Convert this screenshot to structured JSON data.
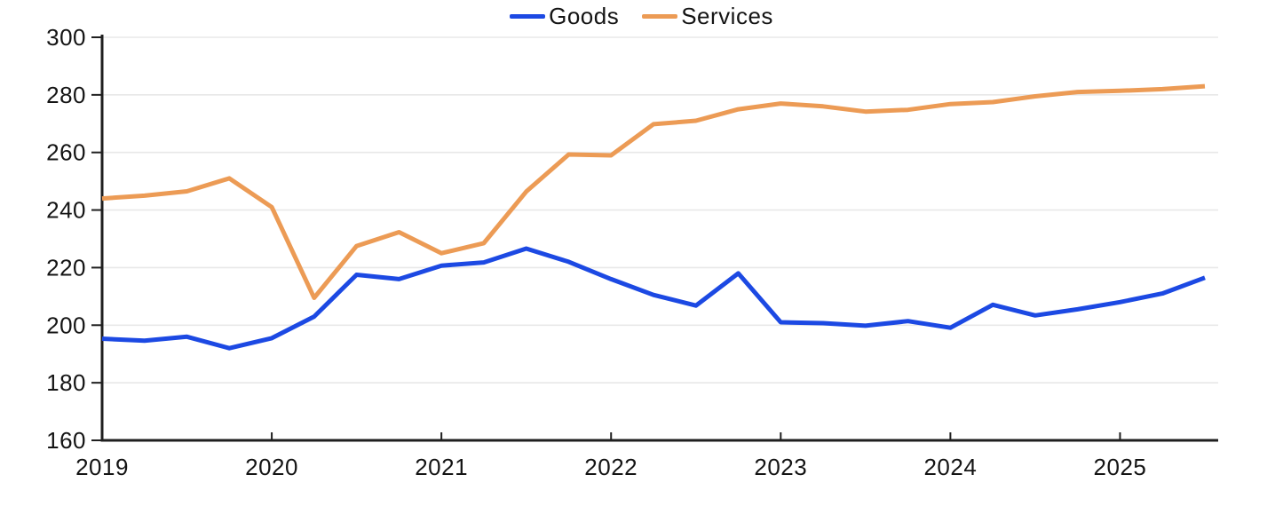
{
  "colors": {
    "goods_line": "#1C49E3",
    "services_line": "#EC9B55",
    "gridline": "#E8E8E8",
    "axis": "#1F1F1F",
    "label_text": "#141414",
    "background": "#FFFFFF"
  },
  "chart_data": {
    "type": "line",
    "title": "",
    "x_frequency": "quarterly",
    "categories": [
      "2019 Q1",
      "2019 Q2",
      "2019 Q3",
      "2019 Q4",
      "2020 Q1",
      "2020 Q2",
      "2020 Q3",
      "2020 Q4",
      "2021 Q1",
      "2021 Q2",
      "2021 Q3",
      "2021 Q4",
      "2022 Q1",
      "2022 Q2",
      "2022 Q3",
      "2022 Q4",
      "2023 Q1",
      "2023 Q2",
      "2023 Q3",
      "2023 Q4",
      "2024 Q1",
      "2024 Q2",
      "2024 Q3",
      "2024 Q4",
      "2025 Q1",
      "2025 Q2",
      "2025 Q3"
    ],
    "series": [
      {
        "name": "Goods",
        "color": "#1C49E3",
        "values": [
          195.3,
          194.6,
          196.0,
          192.0,
          195.5,
          203.0,
          217.5,
          216.0,
          220.7,
          221.8,
          226.6,
          222.0,
          216.0,
          210.5,
          206.8,
          218.0,
          201.0,
          200.7,
          199.8,
          201.4,
          199.1,
          207.1,
          203.4,
          205.5,
          208.0,
          211.0,
          216.5
        ]
      },
      {
        "name": "Services",
        "color": "#EC9B55",
        "values": [
          244.0,
          245.0,
          246.5,
          251.0,
          241.0,
          209.5,
          227.5,
          232.3,
          225.0,
          228.5,
          246.4,
          259.3,
          259.0,
          269.8,
          271.0,
          275.0,
          277.0,
          276.0,
          274.2,
          274.8,
          276.8,
          277.5,
          279.5,
          281.0,
          281.4,
          282.0,
          283.0
        ]
      }
    ],
    "x_tick_labels": [
      "2019",
      "2020",
      "2021",
      "2022",
      "2023",
      "2024",
      "2025"
    ],
    "y_ticks": [
      160,
      180,
      200,
      220,
      240,
      260,
      280,
      300
    ],
    "ylim": [
      160,
      300
    ],
    "xlabel": "",
    "ylabel": "",
    "grid": "horizontal-only",
    "legend_position": "bottom-center"
  }
}
